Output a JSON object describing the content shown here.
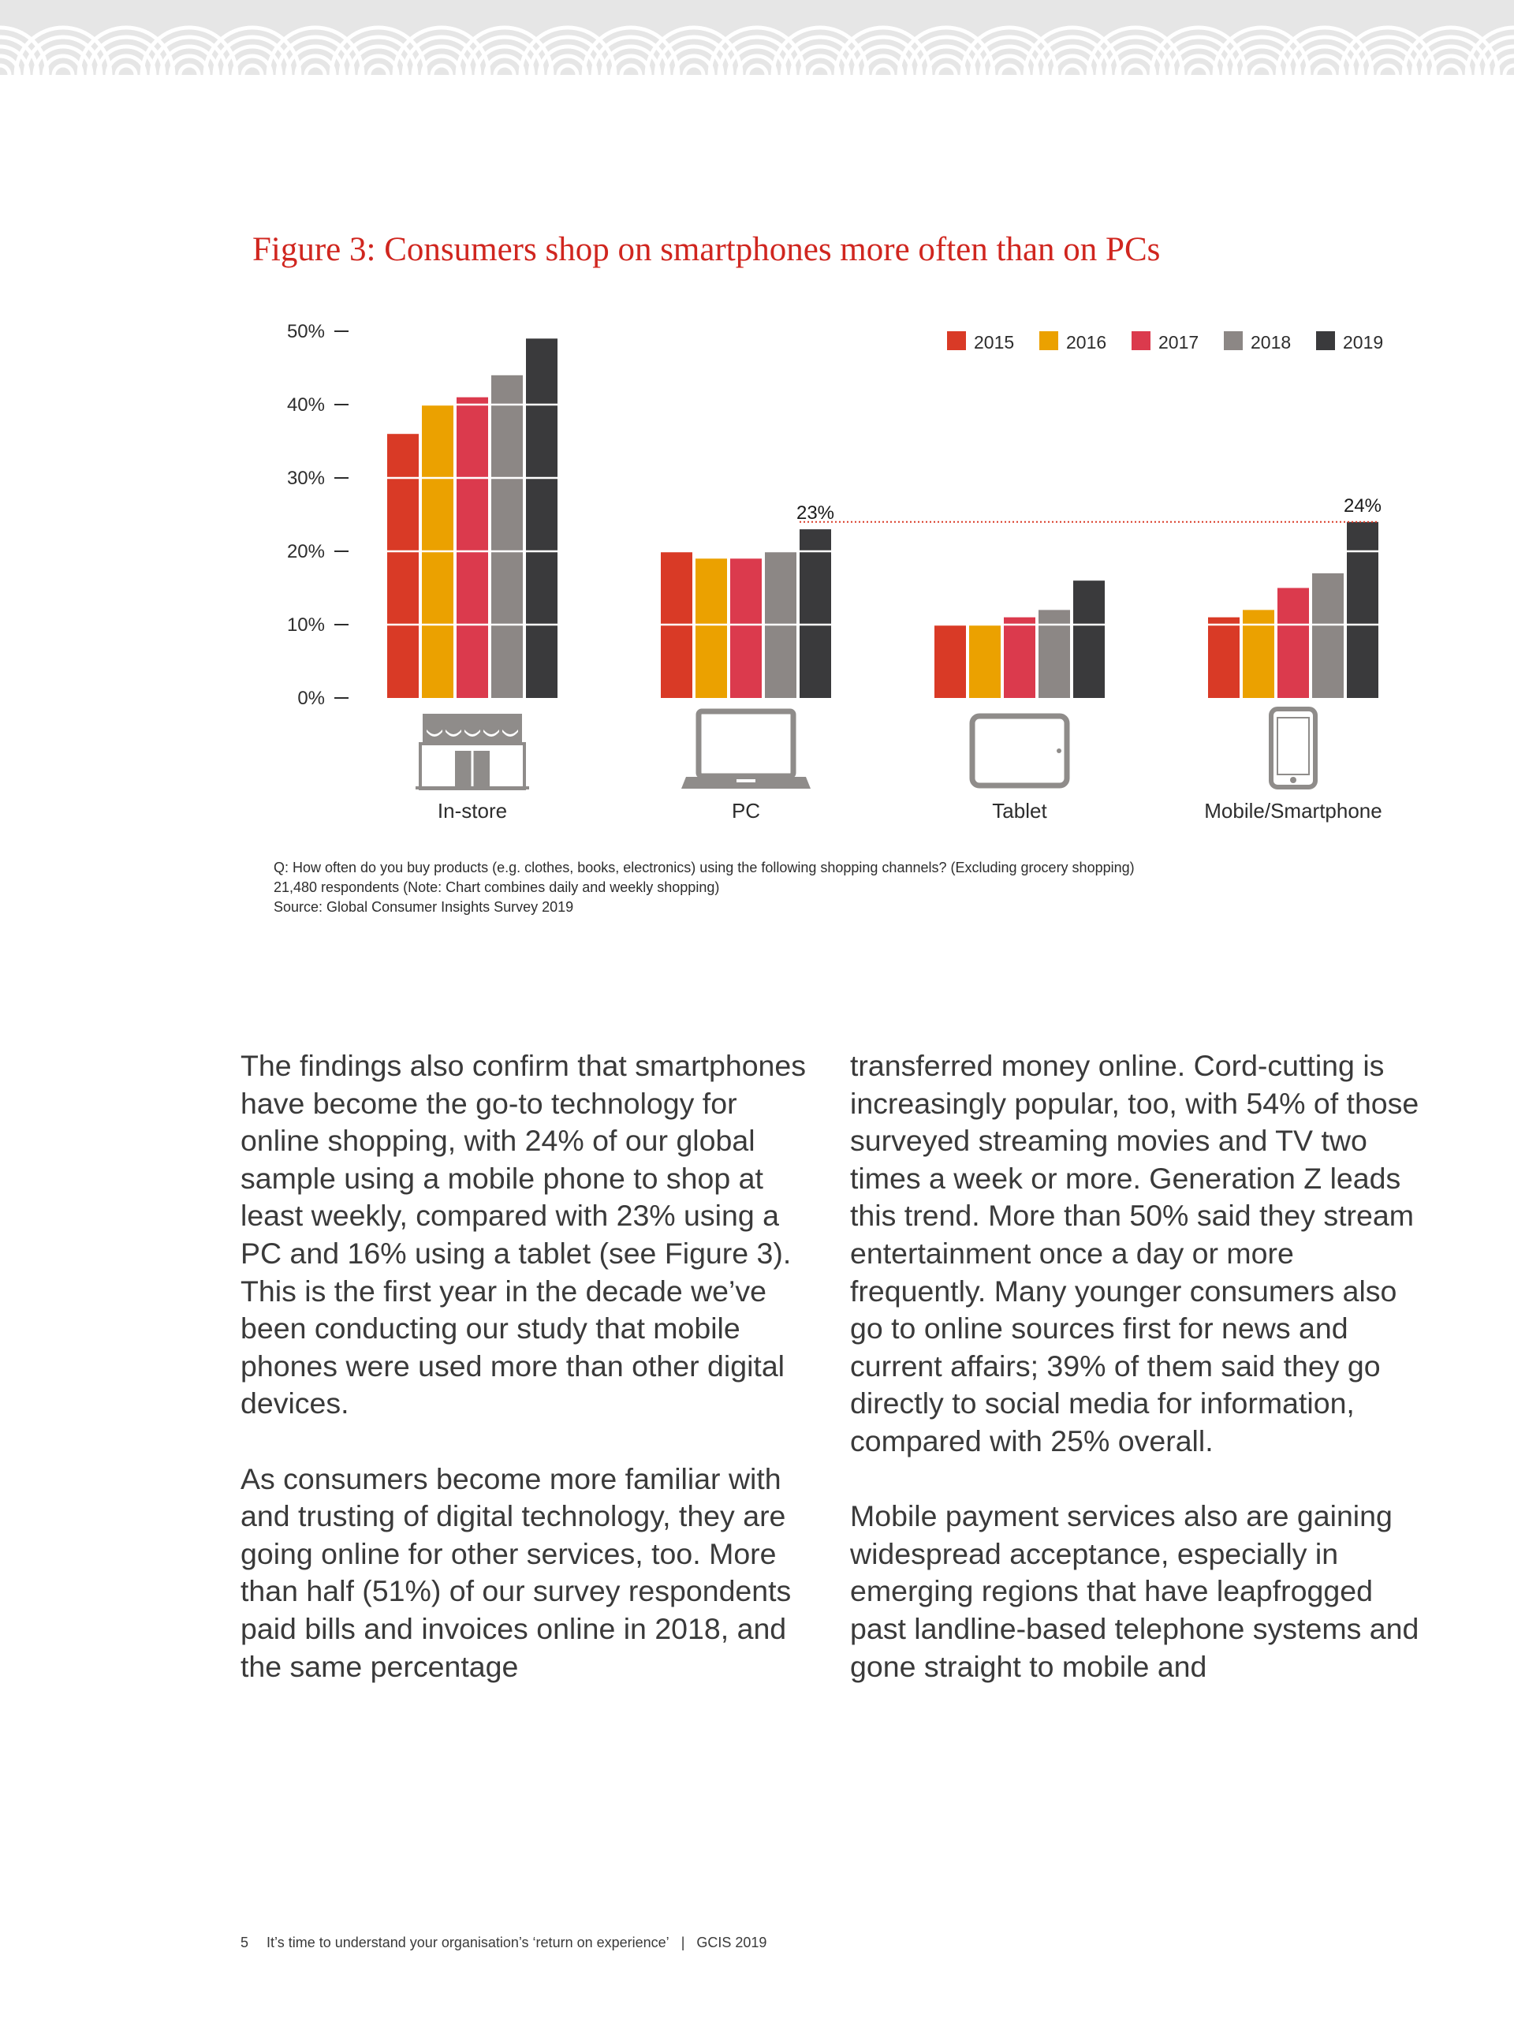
{
  "figure_title": "Figure 3: Consumers shop on smartphones more often than on PCs",
  "colors": {
    "2015": "#d93a26",
    "2016": "#eba100",
    "2017": "#db3a4d",
    "2018": "#8c8785",
    "2019": "#3a3a3c",
    "title": "#d0261f",
    "icon": "#8f8c8a"
  },
  "icons": [
    "storefront-icon",
    "laptop-icon",
    "tablet-icon",
    "smartphone-icon"
  ],
  "chart_data": {
    "type": "bar",
    "categories": [
      "In-store",
      "PC",
      "Tablet",
      "Mobile/Smartphone"
    ],
    "series": [
      {
        "name": "2015",
        "values": [
          36,
          20,
          10,
          11
        ]
      },
      {
        "name": "2016",
        "values": [
          40,
          19,
          10,
          12
        ]
      },
      {
        "name": "2017",
        "values": [
          41,
          19,
          11,
          15
        ]
      },
      {
        "name": "2018",
        "values": [
          44,
          20,
          12,
          17
        ]
      },
      {
        "name": "2019",
        "values": [
          49,
          23,
          16,
          24
        ]
      }
    ],
    "yticks": [
      "0%",
      "10%",
      "20%",
      "30%",
      "40%",
      "50%"
    ],
    "ylim": [
      0,
      50
    ],
    "annotations": [
      {
        "category": "PC",
        "series": "2019",
        "label": "23%"
      },
      {
        "category": "Mobile/Smartphone",
        "series": "2019",
        "label": "24%"
      }
    ],
    "legend_position": "top-right",
    "grid": false
  },
  "notes": [
    "Q: How often do you buy products (e.g. clothes, books, electronics) using the following shopping channels? (Excluding grocery shopping)",
    "21,480 respondents (Note: Chart combines daily and weekly shopping)",
    "Source: Global Consumer Insights Survey 2019"
  ],
  "body": {
    "left": [
      "The findings also confirm that smartphones have become the go-to technology for online shopping, with 24% of our global sample using a mobile phone to shop at least weekly, compared with 23% using a PC and 16% using a tablet (see Figure 3). This is the first year in the decade we’ve been conducting our study that mobile phones were used more than other digital devices.",
      "As consumers become more familiar with and trusting of digital technology, they are going online for other services, too. More than half (51%) of our survey respondents paid bills and invoices online in 2018, and the same percentage"
    ],
    "right": [
      "transferred money online. Cord-cutting is increasingly popular, too, with 54% of those surveyed streaming movies and TV two times a week or more. Generation Z leads this trend. More than 50% said they stream entertainment once a day or more frequently. Many younger consumers also go to online sources first for news and current affairs; 39% of them said they go directly to social media for information, compared with 25% overall.",
      "Mobile payment services also are gaining widespread acceptance, especially in emerging regions that have leapfrogged past landline-based telephone systems and gone straight to mobile and"
    ]
  },
  "footer": {
    "page_number": "5",
    "text": "It’s time to understand your organisation’s ‘return on experience’",
    "separator": "|",
    "publication": "GCIS 2019"
  }
}
